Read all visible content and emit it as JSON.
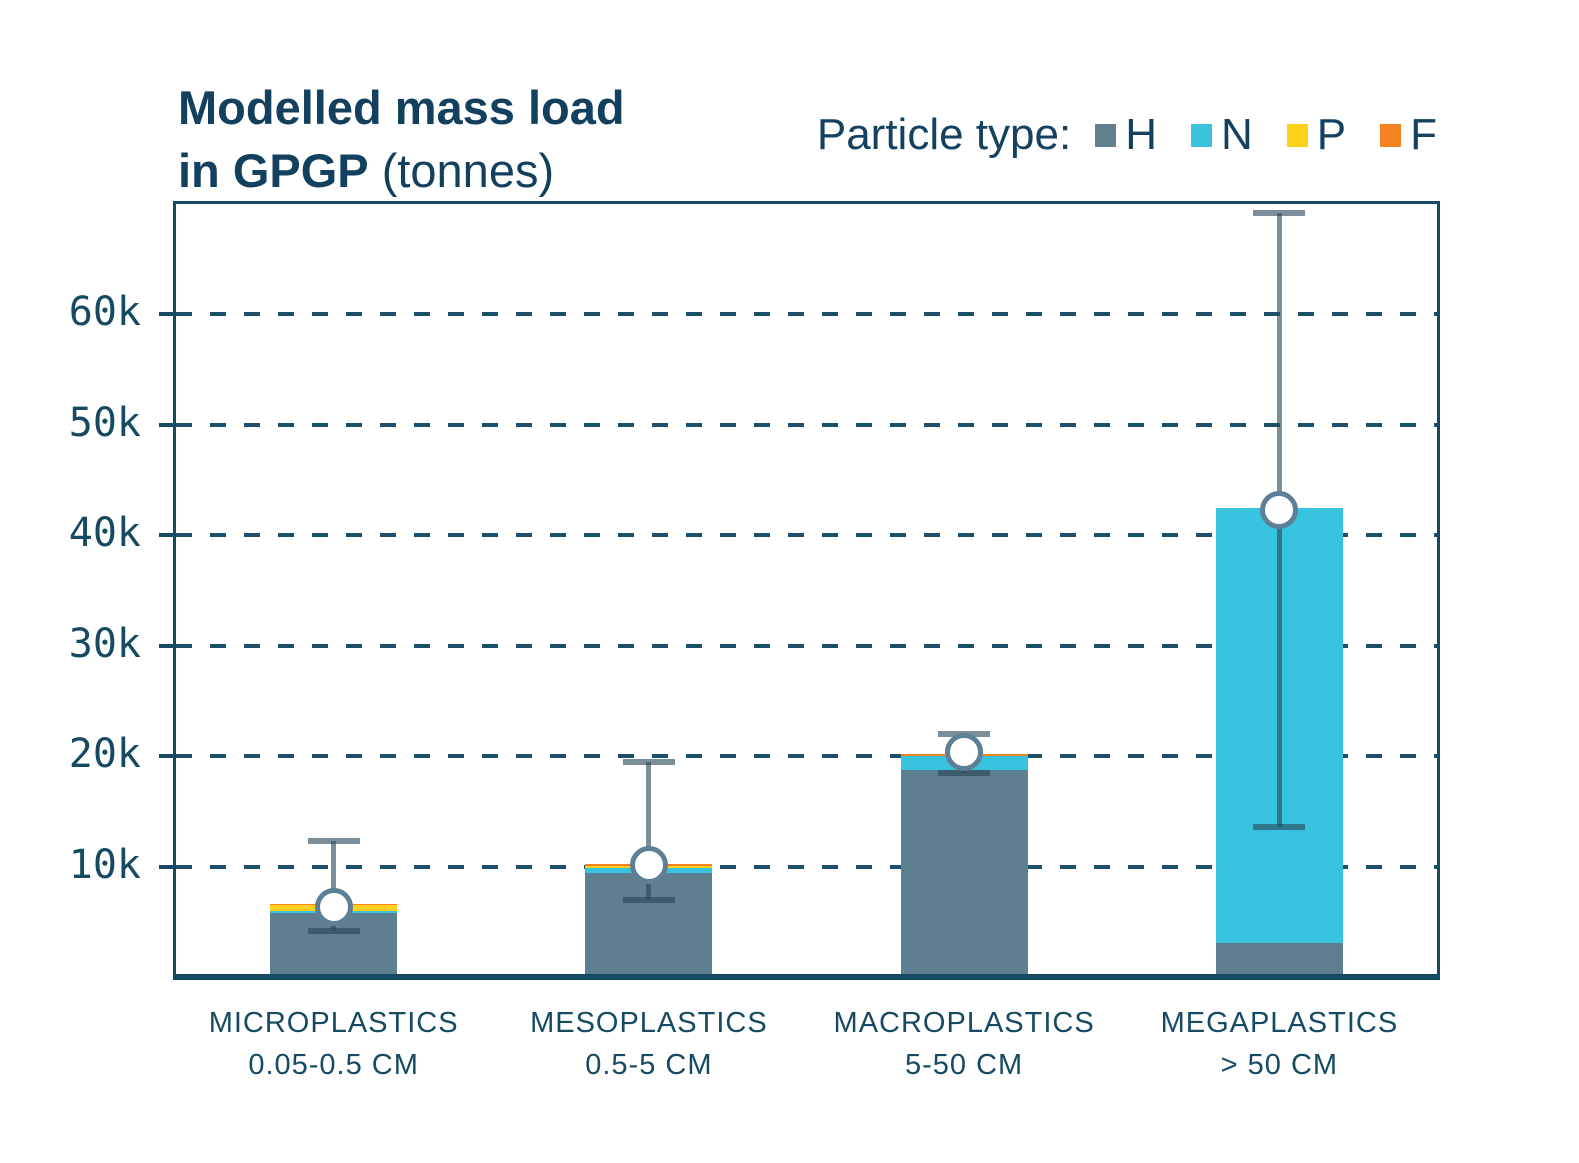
{
  "title": {
    "line1_bold": "Modelled mass load",
    "line2_bold": "in GPGP",
    "line2_regular": " (tonnes)"
  },
  "legend": {
    "label": "Particle type:",
    "items": [
      {
        "label": "H",
        "color": "#64808f"
      },
      {
        "label": "N",
        "color": "#3bc3dc"
      },
      {
        "label": "P",
        "color": "#fdd116"
      },
      {
        "label": "F",
        "color": "#f58220"
      }
    ]
  },
  "colors": {
    "navy_text": "#164a63",
    "title_text": "#12405e",
    "plot_border": "#164a63",
    "gridline": "#1d4f6b",
    "error_bar": "rgba(42,72,92,0.62)",
    "marker_stroke": "#5d8096",
    "background": "#ffffff"
  },
  "chart_data": {
    "type": "bar",
    "stacked": true,
    "title": "Modelled mass load in GPGP (tonnes)",
    "xlabel": "",
    "ylabel": "tonnes",
    "ylim": [
      0,
      70000
    ],
    "grid": "horizontal-dashed",
    "legend_position": "top-right",
    "yticks": [
      {
        "value": 10000,
        "label": "10k"
      },
      {
        "value": 20000,
        "label": "20k"
      },
      {
        "value": 30000,
        "label": "30k"
      },
      {
        "value": 40000,
        "label": "40k"
      },
      {
        "value": 50000,
        "label": "50k"
      },
      {
        "value": 60000,
        "label": "60k"
      }
    ],
    "categories": [
      {
        "name": "MICROPLASTICS",
        "size": "0.05-0.5 CM"
      },
      {
        "name": "MESOPLASTICS",
        "size": "0.5-5 CM"
      },
      {
        "name": "MACROPLASTICS",
        "size": "5-50 CM"
      },
      {
        "name": "MEGAPLASTICS",
        "size": "> 50 CM"
      }
    ],
    "series": [
      {
        "name": "H",
        "color": "#5d7f8f",
        "values": [
          5800,
          9400,
          18700,
          3100
        ]
      },
      {
        "name": "N",
        "color": "#38c3de",
        "values": [
          200,
          450,
          1300,
          39400
        ]
      },
      {
        "name": "P",
        "color": "#ffd01e",
        "values": [
          500,
          200,
          0,
          0
        ]
      },
      {
        "name": "F",
        "color": "#f5821f",
        "values": [
          100,
          150,
          200,
          0
        ]
      }
    ],
    "totals": [
      6600,
      10200,
      20200,
      42500
    ],
    "markers": {
      "shape": "circle",
      "values": [
        6300,
        10150,
        20350,
        42300
      ]
    },
    "error_bars": {
      "low": [
        4200,
        7000,
        18500,
        13600
      ],
      "high": [
        12300,
        19500,
        22000,
        69200
      ]
    }
  }
}
